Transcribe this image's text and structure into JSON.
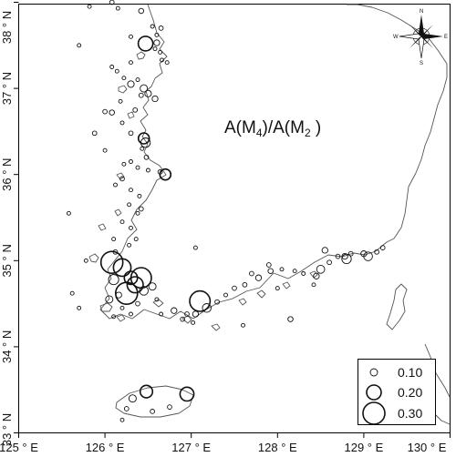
{
  "title": {
    "main": "A(M",
    "sub1": "4",
    "mid": ")/A(M",
    "sub2": "2",
    "end": " )"
  },
  "axes": {
    "x_ticks": [
      {
        "value": 125,
        "label": "125 ° E"
      },
      {
        "value": 126,
        "label": "126 ° E"
      },
      {
        "value": 127,
        "label": "127 ° E"
      },
      {
        "value": 128,
        "label": "128 ° E"
      },
      {
        "value": 129,
        "label": "129 ° E"
      },
      {
        "value": 130,
        "label": "130 ° E"
      }
    ],
    "y_ticks": [
      {
        "value": 33,
        "label": "33 ° N"
      },
      {
        "value": 34,
        "label": "34 ° N"
      },
      {
        "value": 35,
        "label": "35 ° N"
      },
      {
        "value": 36,
        "label": "36 ° N"
      },
      {
        "value": 37,
        "label": "37 ° N"
      },
      {
        "value": 38,
        "label": "38 ° N"
      }
    ]
  },
  "compass": {
    "n": "N",
    "s": "S",
    "e": "E",
    "w": "W"
  },
  "legend": {
    "items": [
      {
        "value": 0.1,
        "label": "0.10"
      },
      {
        "value": 0.2,
        "label": "0.20"
      },
      {
        "value": 0.3,
        "label": "0.30"
      }
    ]
  },
  "stations": [
    [
      126.08,
      38.0,
      0.06
    ],
    [
      126.15,
      37.93,
      0.05
    ],
    [
      126.42,
      37.9,
      0.07
    ],
    [
      126.55,
      37.72,
      0.05
    ],
    [
      126.6,
      37.62,
      0.05
    ],
    [
      126.6,
      37.53,
      0.08
    ],
    [
      126.47,
      37.52,
      0.2
    ],
    [
      126.58,
      37.46,
      0.05
    ],
    [
      126.64,
      37.42,
      0.05
    ],
    [
      126.72,
      37.3,
      0.05
    ],
    [
      126.66,
      37.33,
      0.04
    ],
    [
      126.3,
      37.3,
      0.05
    ],
    [
      126.08,
      37.25,
      0.04
    ],
    [
      126.14,
      37.2,
      0.05
    ],
    [
      126.22,
      37.12,
      0.05
    ],
    [
      126.3,
      37.05,
      0.09
    ],
    [
      126.38,
      37.1,
      0.05
    ],
    [
      126.45,
      37.0,
      0.1
    ],
    [
      126.5,
      36.94,
      0.09
    ],
    [
      126.42,
      36.92,
      0.06
    ],
    [
      126.58,
      36.88,
      0.08
    ],
    [
      126.0,
      36.73,
      0.06
    ],
    [
      126.08,
      36.72,
      0.07
    ],
    [
      126.2,
      36.6,
      0.05
    ],
    [
      126.3,
      36.48,
      0.06
    ],
    [
      126.45,
      36.42,
      0.15
    ],
    [
      126.47,
      36.37,
      0.13
    ],
    [
      126.43,
      36.3,
      0.05
    ],
    [
      126.48,
      36.2,
      0.06
    ],
    [
      126.3,
      36.15,
      0.05
    ],
    [
      126.22,
      36.12,
      0.05
    ],
    [
      126.38,
      36.08,
      0.05
    ],
    [
      126.7,
      36.0,
      0.15
    ],
    [
      126.64,
      36.03,
      0.06
    ],
    [
      126.2,
      35.95,
      0.06
    ],
    [
      126.12,
      35.88,
      0.05
    ],
    [
      126.3,
      35.82,
      0.05
    ],
    [
      126.4,
      35.75,
      0.05
    ],
    [
      126.28,
      35.65,
      0.05
    ],
    [
      126.42,
      35.6,
      0.06
    ],
    [
      126.38,
      35.55,
      0.05
    ],
    [
      126.2,
      35.45,
      0.05
    ],
    [
      126.3,
      35.38,
      0.05
    ],
    [
      126.36,
      35.25,
      0.05
    ],
    [
      126.1,
      35.25,
      0.05
    ],
    [
      126.28,
      35.18,
      0.05
    ],
    [
      126.12,
      35.1,
      0.06
    ],
    [
      126.08,
      34.98,
      0.3
    ],
    [
      126.2,
      34.92,
      0.24
    ],
    [
      126.1,
      34.78,
      0.14
    ],
    [
      126.3,
      34.8,
      0.18
    ],
    [
      126.42,
      34.8,
      0.28
    ],
    [
      126.35,
      34.72,
      0.22
    ],
    [
      126.25,
      34.62,
      0.3
    ],
    [
      126.16,
      34.6,
      0.08
    ],
    [
      126.05,
      34.55,
      0.1
    ],
    [
      126.45,
      34.65,
      0.12
    ],
    [
      126.55,
      34.7,
      0.1
    ],
    [
      126.6,
      34.55,
      0.05
    ],
    [
      126.38,
      34.5,
      0.06
    ],
    [
      126.2,
      34.45,
      0.05
    ],
    [
      126.1,
      34.35,
      0.05
    ],
    [
      126.3,
      34.38,
      0.05
    ],
    [
      126.65,
      34.38,
      0.05
    ],
    [
      126.8,
      34.42,
      0.08
    ],
    [
      126.95,
      34.38,
      0.06
    ],
    [
      126.9,
      34.32,
      0.06
    ],
    [
      127.05,
      34.38,
      0.08
    ],
    [
      127.1,
      34.53,
      0.28
    ],
    [
      127.18,
      34.45,
      0.12
    ],
    [
      127.02,
      34.28,
      0.05
    ],
    [
      127.3,
      34.52,
      0.06
    ],
    [
      127.4,
      34.6,
      0.05
    ],
    [
      127.5,
      34.68,
      0.06
    ],
    [
      127.62,
      34.72,
      0.06
    ],
    [
      127.78,
      34.8,
      0.08
    ],
    [
      127.7,
      34.85,
      0.06
    ],
    [
      127.92,
      34.88,
      0.07
    ],
    [
      128.05,
      34.9,
      0.05
    ],
    [
      127.9,
      34.95,
      0.06
    ],
    [
      128.2,
      34.88,
      0.05
    ],
    [
      128.3,
      34.85,
      0.05
    ],
    [
      128.45,
      34.82,
      0.08
    ],
    [
      128.5,
      34.9,
      0.11
    ],
    [
      128.6,
      34.98,
      0.06
    ],
    [
      128.42,
      34.72,
      0.05
    ],
    [
      128.55,
      35.12,
      0.08
    ],
    [
      128.7,
      35.05,
      0.06
    ],
    [
      128.78,
      35.05,
      0.08
    ],
    [
      128.8,
      35.02,
      0.13
    ],
    [
      128.85,
      35.08,
      0.06
    ],
    [
      129.0,
      35.08,
      0.08
    ],
    [
      129.05,
      35.05,
      0.12
    ],
    [
      129.15,
      35.1,
      0.06
    ],
    [
      129.22,
      35.15,
      0.06
    ],
    [
      128.15,
      34.32,
      0.07
    ],
    [
      128.0,
      34.68,
      0.05
    ],
    [
      127.6,
      34.25,
      0.05
    ],
    [
      127.05,
      35.15,
      0.05
    ],
    [
      126.48,
      33.48,
      0.17
    ],
    [
      126.32,
      33.4,
      0.1
    ],
    [
      126.25,
      33.28,
      0.06
    ],
    [
      126.55,
      33.25,
      0.06
    ],
    [
      126.75,
      33.3,
      0.06
    ],
    [
      126.95,
      33.45,
      0.19
    ],
    [
      126.2,
      33.15,
      0.05
    ],
    [
      126.0,
      36.28,
      0.05
    ],
    [
      125.88,
      36.48,
      0.06
    ],
    [
      125.7,
      37.5,
      0.04
    ],
    [
      125.58,
      35.55,
      0.05
    ],
    [
      125.78,
      35.0,
      0.05
    ],
    [
      125.62,
      34.62,
      0.05
    ],
    [
      125.7,
      34.45,
      0.05
    ],
    [
      126.3,
      37.6,
      0.05
    ],
    [
      126.35,
      36.75,
      0.06
    ],
    [
      126.5,
      36.05,
      0.05
    ],
    [
      125.82,
      37.95,
      0.05
    ],
    [
      126.65,
      37.7,
      0.06
    ],
    [
      126.18,
      36.85,
      0.05
    ]
  ]
}
